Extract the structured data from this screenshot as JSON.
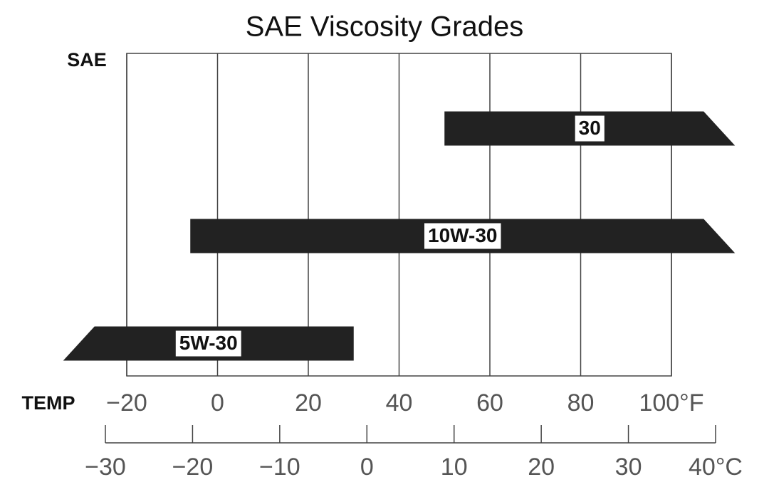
{
  "chart_data": {
    "type": "range-bar",
    "title": "SAE Viscosity Grades",
    "y_label": "SAE",
    "x_label": "TEMP",
    "categories": [
      "30",
      "10W-30",
      "5W-30"
    ],
    "ranges": [
      [
        50,
        114
      ],
      [
        -6,
        114
      ],
      [
        -34,
        30
      ]
    ],
    "color": "#222222",
    "xlim": [
      -20,
      100
    ],
    "xticks": [
      {
        "value": -20,
        "label": "−20"
      },
      0,
      20,
      40,
      60,
      80,
      {
        "value": 100,
        "label": "100°F"
      }
    ],
    "x2lim": [
      -30,
      40
    ],
    "x2ticks": [
      {
        "value": -30,
        "label": "−30"
      },
      {
        "value": -20,
        "label": "−20"
      },
      {
        "value": -10,
        "label": "−10"
      },
      0,
      10,
      20,
      30,
      {
        "value": 40,
        "label": "40°C"
      }
    ],
    "grid": true
  }
}
